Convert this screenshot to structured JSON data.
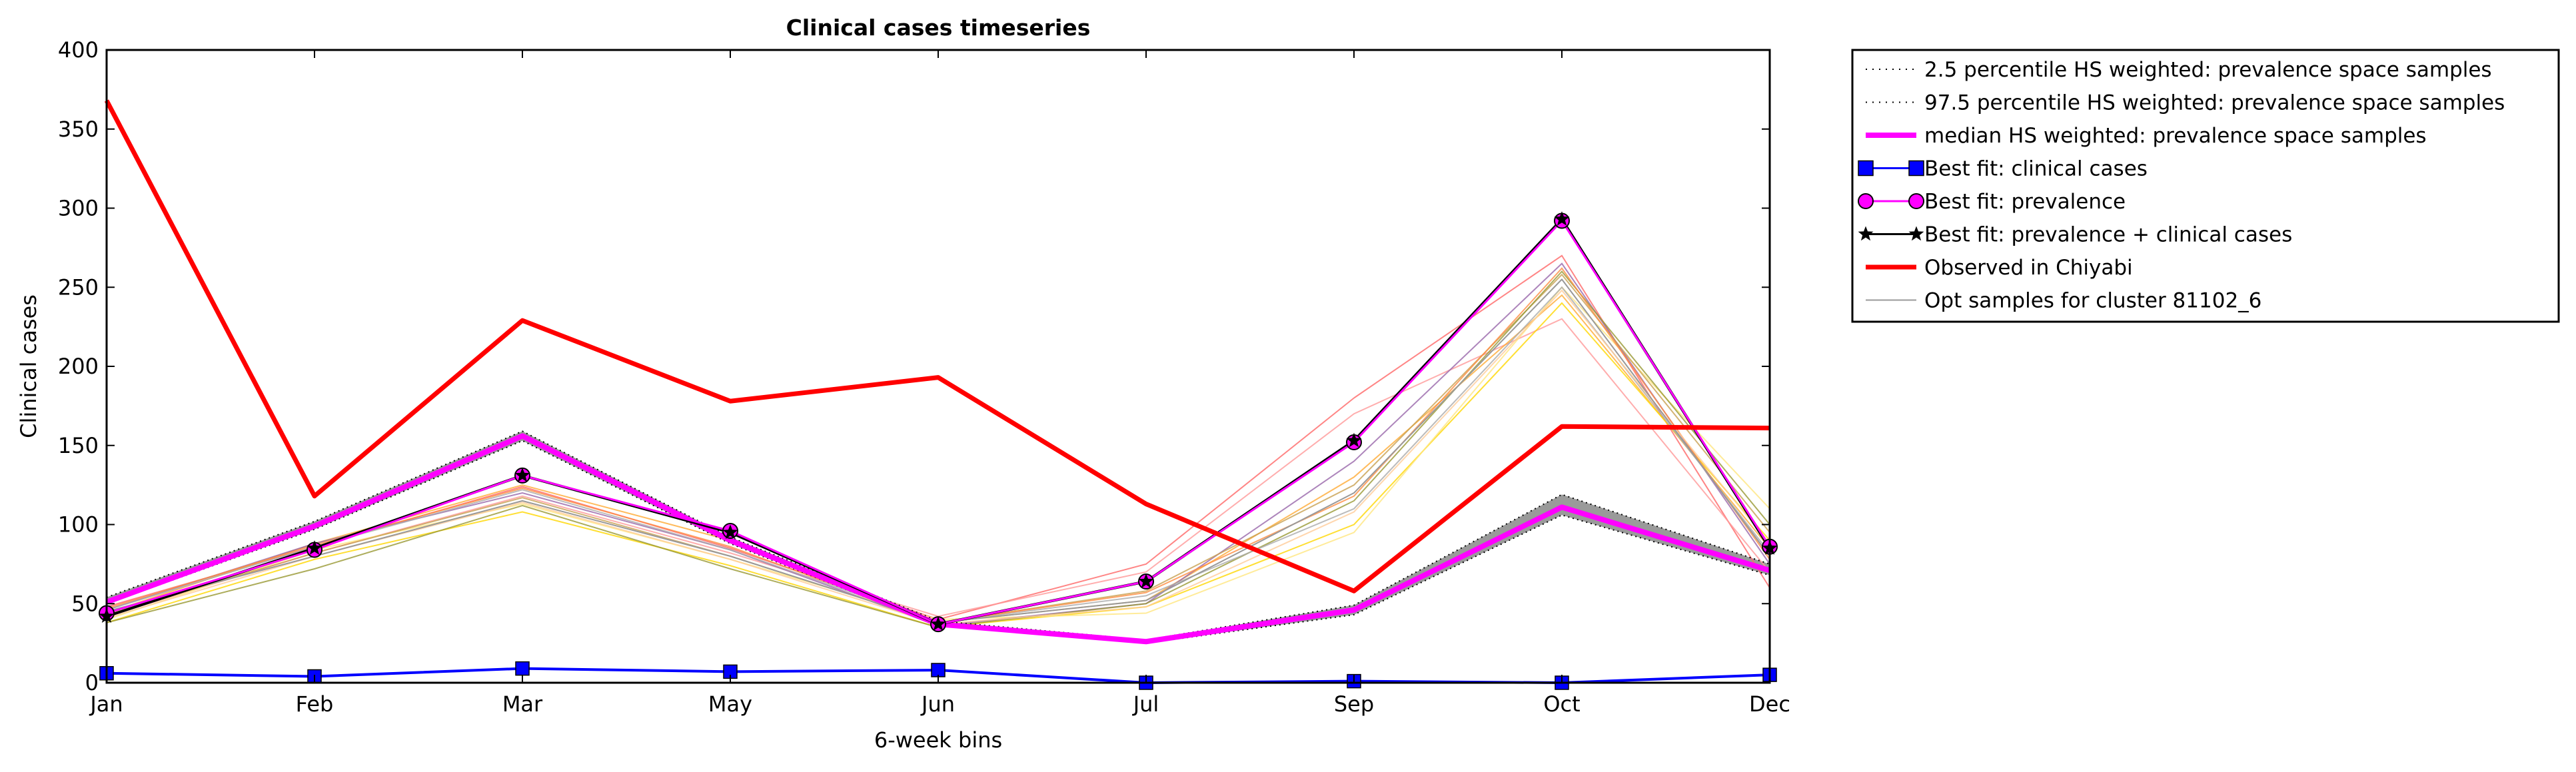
{
  "chart_data": {
    "type": "line",
    "title": "Clinical cases timeseries",
    "xlabel": "6-week bins",
    "ylabel": "Clinical cases",
    "categories": [
      "Jan",
      "Feb",
      "Mar",
      "May",
      "Jun",
      "Jul",
      "Sep",
      "Oct",
      "Dec"
    ],
    "ylim": [
      0,
      400
    ],
    "yticks": [
      0,
      50,
      100,
      150,
      200,
      250,
      300,
      350,
      400
    ],
    "grid": false,
    "legend_position": "outside-right",
    "series": [
      {
        "name": "2.5 percentile HS weighted: prevalence space samples",
        "color": "#000000",
        "style": "dotted",
        "values": [
          50,
          97,
          153,
          88,
          36,
          25,
          43,
          106,
          68
        ]
      },
      {
        "name": "97.5 percentile HS weighted: prevalence space samples",
        "color": "#000000",
        "style": "dotted",
        "values": [
          54,
          102,
          159,
          92,
          39,
          27,
          49,
          119,
          75
        ]
      },
      {
        "name": "median HS weighted: prevalence space samples",
        "color": "#ff00ff",
        "style": "solid",
        "values": [
          51,
          99,
          156,
          90,
          37,
          26,
          46,
          111,
          71
        ]
      },
      {
        "name": "Best fit: clinical cases",
        "color": "#0000ff",
        "style": "solid",
        "marker": "square",
        "values": [
          6,
          4,
          9,
          7,
          8,
          0,
          1,
          0,
          5
        ]
      },
      {
        "name": "Best fit: prevalence",
        "color": "#ff00ff",
        "style": "solid",
        "marker": "circle",
        "values": [
          44,
          84,
          131,
          96,
          37,
          64,
          152,
          292,
          86
        ]
      },
      {
        "name": "Best fit: prevalence + clinical cases",
        "color": "#000000",
        "style": "solid",
        "marker": "star",
        "values": [
          42,
          85,
          131,
          95,
          37,
          64,
          153,
          293,
          85
        ]
      },
      {
        "name": "Observed in Chiyabi",
        "color": "#ff0000",
        "style": "solid",
        "values": [
          368,
          118,
          229,
          178,
          193,
          113,
          58,
          162,
          161
        ]
      },
      {
        "name": "Opt samples for cluster 81102_6",
        "color": "#999999",
        "style": "solid",
        "values": [
          45,
          80,
          115,
          80,
          38,
          52,
          120,
          255,
          80
        ]
      }
    ],
    "opt_samples": [
      {
        "color": "#ff6666",
        "values": [
          48,
          86,
          124,
          85,
          40,
          75,
          180,
          270,
          60
        ]
      },
      {
        "color": "#ff9999",
        "values": [
          42,
          82,
          118,
          82,
          42,
          70,
          170,
          230,
          70
        ]
      },
      {
        "color": "#ffaa33",
        "values": [
          44,
          88,
          125,
          90,
          38,
          52,
          130,
          245,
          85
        ]
      },
      {
        "color": "#ffd700",
        "values": [
          38,
          78,
          108,
          74,
          35,
          48,
          100,
          240,
          90
        ]
      },
      {
        "color": "#ffe680",
        "values": [
          40,
          84,
          113,
          78,
          40,
          44,
          95,
          250,
          110
        ]
      },
      {
        "color": "#9966aa",
        "values": [
          46,
          88,
          120,
          84,
          36,
          50,
          140,
          265,
          75
        ]
      },
      {
        "color": "#c8a050",
        "values": [
          43,
          82,
          117,
          80,
          38,
          58,
          125,
          258,
          95
        ]
      },
      {
        "color": "#999933",
        "values": [
          38,
          72,
          112,
          72,
          35,
          50,
          115,
          260,
          100
        ]
      },
      {
        "color": "#aaaaaa",
        "values": [
          46,
          86,
          122,
          84,
          38,
          55,
          110,
          250,
          82
        ]
      },
      {
        "color": "#ff8c40",
        "values": [
          47,
          87,
          123,
          86,
          38,
          57,
          118,
          262,
          78
        ]
      },
      {
        "color": "#ffcc99",
        "values": [
          41,
          80,
          114,
          78,
          37,
          48,
          108,
          248,
          88
        ]
      }
    ]
  }
}
